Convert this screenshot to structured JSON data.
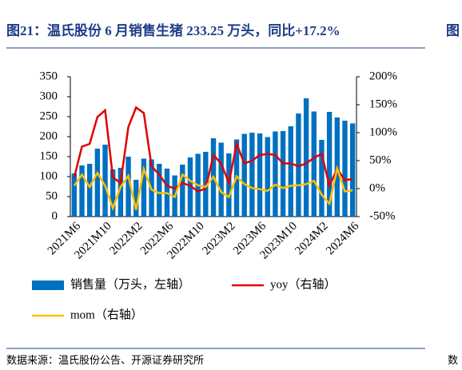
{
  "chart_data": {
    "type": "bar-line",
    "title": "图21：温氏股份 6 月销售生猪 233.25 万头，同比+17.2%",
    "next_title": "图",
    "source": "数据来源：温氏股份公告、开源证券研究所",
    "next_source": "数",
    "categories": [
      "2021M6",
      null,
      null,
      null,
      "2021M10",
      null,
      null,
      null,
      "2022M2",
      null,
      null,
      null,
      "2022M6",
      null,
      null,
      null,
      "2022M10",
      null,
      null,
      null,
      "2023M2",
      null,
      null,
      null,
      "2023M6",
      null,
      null,
      null,
      "2023M10",
      null,
      null,
      null,
      "2024M2",
      null,
      null,
      null,
      "2024M6"
    ],
    "series": [
      {
        "name": "销售量（万头，左轴）",
        "color": "#0070c0",
        "axis": "y",
        "values": [
          108,
          128,
          132,
          170,
          180,
          118,
          122,
          150,
          92,
          145,
          143,
          132,
          120,
          103,
          130,
          148,
          157,
          162,
          196,
          185,
          158,
          193,
          207,
          210,
          208,
          199,
          213,
          214,
          226,
          258,
          296,
          263,
          192,
          262,
          248,
          240,
          233.25
        ]
      },
      {
        "name": "yoy（右轴）",
        "color": "#e00000",
        "axis": "y2",
        "values": [
          20,
          75,
          80,
          128,
          140,
          20,
          10,
          110,
          145,
          135,
          40,
          25,
          5,
          0,
          10,
          5,
          -5,
          0,
          60,
          45,
          10,
          80,
          45,
          50,
          60,
          62,
          60,
          45,
          45,
          40,
          45,
          55,
          62,
          5,
          35,
          15,
          17.2
        ]
      },
      {
        "name": "mom（右轴）",
        "color": "#ffc000",
        "axis": "y2",
        "values": [
          5,
          25,
          3,
          28,
          5,
          -35,
          3,
          23,
          -38,
          35,
          -2,
          -8,
          -8,
          -15,
          25,
          14,
          6,
          3,
          21,
          -6,
          -15,
          22,
          8,
          1,
          -1,
          -4,
          7,
          1,
          5,
          6,
          8,
          14,
          -11,
          -27,
          36,
          -5,
          -3
        ]
      }
    ],
    "ylim": [
      0,
      350
    ],
    "yticks": [
      0,
      50,
      100,
      150,
      200,
      250,
      300,
      350
    ],
    "y2lim": [
      -50,
      200
    ],
    "y2ticks": [
      {
        "value": -50,
        "label": "-50%"
      },
      {
        "value": 0,
        "label": "0%"
      },
      {
        "value": 50,
        "label": "50%"
      },
      {
        "value": 100,
        "label": "100%"
      },
      {
        "value": 150,
        "label": "150%"
      },
      {
        "value": 200,
        "label": "200%"
      }
    ]
  }
}
